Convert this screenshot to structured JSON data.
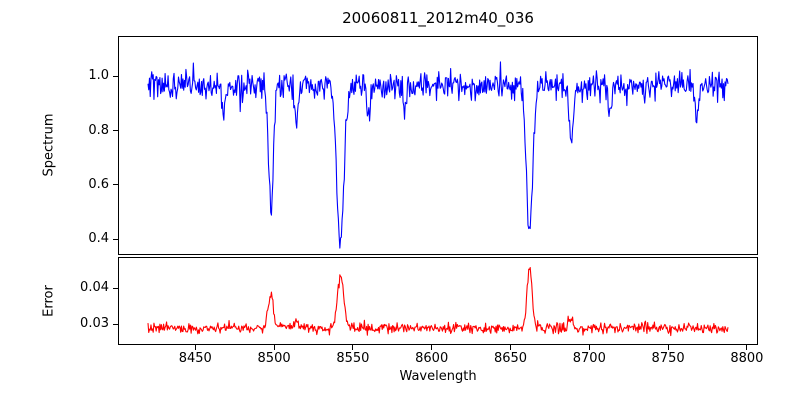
{
  "figure": {
    "title": "20060811_2012m40_036",
    "xlabel": "Wavelength",
    "background": "#ffffff",
    "frame_color": "#000000"
  },
  "chart_data": [
    {
      "type": "line",
      "panel": "spectrum",
      "ylabel": "Spectrum",
      "color": "#0000ff",
      "xlim": [
        8401.6,
        8806.4
      ],
      "x_range": [
        8420,
        8788
      ],
      "xticks": [
        8450,
        8500,
        8550,
        8600,
        8650,
        8700,
        8750,
        8800
      ],
      "xtick_labels": [
        "8450",
        "8500",
        "8550",
        "8600",
        "8650",
        "8700",
        "8750",
        "8800"
      ],
      "ylim": [
        0.345,
        1.145
      ],
      "yticks": [
        0.4,
        0.6,
        0.8,
        1.0
      ],
      "ytick_labels": [
        "0.4",
        "0.6",
        "0.8",
        "1.0"
      ],
      "baseline": 0.968,
      "noise_sigma": 0.025,
      "absorption_lines": [
        {
          "center": 8498.0,
          "min_value": 0.52,
          "width": 1.6
        },
        {
          "center": 8542.1,
          "min_value": 0.38,
          "width": 2.2
        },
        {
          "center": 8662.1,
          "min_value": 0.43,
          "width": 2.0
        },
        {
          "center": 8468.0,
          "min_value": 0.88,
          "width": 1.2
        },
        {
          "center": 8514.0,
          "min_value": 0.84,
          "width": 1.2
        },
        {
          "center": 8560.0,
          "min_value": 0.88,
          "width": 1.1
        },
        {
          "center": 8583.0,
          "min_value": 0.87,
          "width": 1.1
        },
        {
          "center": 8688.5,
          "min_value": 0.77,
          "width": 1.5
        },
        {
          "center": 8713.0,
          "min_value": 0.86,
          "width": 1.1
        },
        {
          "center": 8768.0,
          "min_value": 0.83,
          "width": 1.1
        }
      ]
    },
    {
      "type": "line",
      "panel": "error",
      "ylabel": "Error",
      "color": "#ff0000",
      "ylim": [
        0.0246,
        0.0484
      ],
      "yticks": [
        0.03,
        0.04
      ],
      "ytick_labels": [
        "0.03",
        "0.04"
      ],
      "baseline": 0.029,
      "noise_sigma": 0.0007,
      "peaks": [
        {
          "center": 8498.0,
          "max_value": 0.0385,
          "width": 1.6
        },
        {
          "center": 8514.0,
          "max_value": 0.031,
          "width": 1.2
        },
        {
          "center": 8542.1,
          "max_value": 0.0435,
          "width": 2.0
        },
        {
          "center": 8662.1,
          "max_value": 0.046,
          "width": 1.6
        },
        {
          "center": 8688.5,
          "max_value": 0.0315,
          "width": 1.4
        }
      ]
    }
  ]
}
